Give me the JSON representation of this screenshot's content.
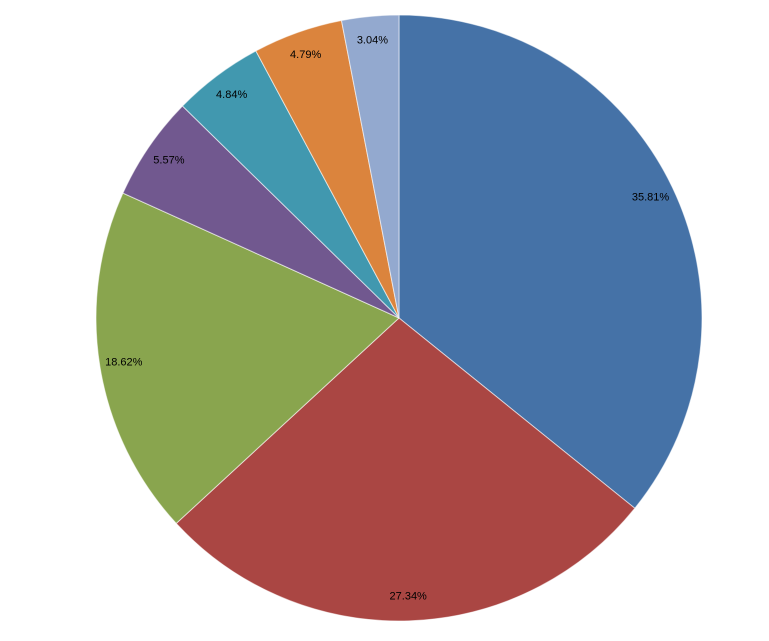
{
  "chart_data": {
    "type": "pie",
    "values": [
      35.81,
      27.34,
      18.62,
      5.57,
      4.84,
      4.79,
      3.04
    ],
    "value_labels": [
      "35.81%",
      "27.34%",
      "18.62%",
      "5.57%",
      "4.84%",
      "4.79%",
      "3.04%"
    ],
    "colors": [
      "#4572a7",
      "#aa4643",
      "#89a54e",
      "#71588f",
      "#4198af",
      "#db843d",
      "#93a9cf"
    ]
  }
}
